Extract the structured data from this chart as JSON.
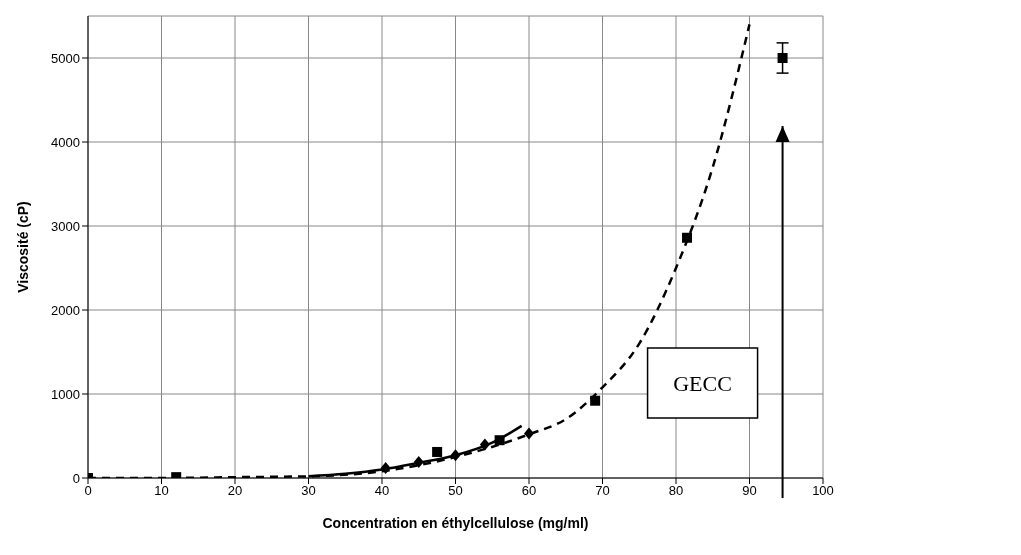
{
  "chart_data": {
    "type": "scatter",
    "xlabel": "Concentration en éthylcellulose  (mg/ml)",
    "ylabel": "Viscosité (cP)",
    "xlim": [
      0,
      100
    ],
    "xticks": [
      0,
      10,
      20,
      30,
      40,
      50,
      60,
      70,
      80,
      90,
      100
    ],
    "ylim": [
      0,
      5500
    ],
    "yticks": [
      0,
      1000,
      2000,
      3000,
      4000,
      5000
    ],
    "grid": true,
    "ref_lines": [
      {
        "axis": "x",
        "value": 94.5,
        "label": "GECC"
      }
    ],
    "series": [
      {
        "marker": "diamond",
        "color": "#000000",
        "x": [
          40.5,
          45,
          50,
          54,
          60
        ],
        "values": [
          120,
          190,
          270,
          400,
          530
        ]
      },
      {
        "marker": "square",
        "color": "#000000",
        "x": [
          0,
          12,
          47.5,
          56,
          69,
          81.5,
          94.5
        ],
        "values": [
          0,
          10,
          310,
          450,
          920,
          2860,
          5000
        ],
        "errors": [
          null,
          null,
          null,
          null,
          null,
          null,
          180
        ]
      },
      {
        "type": "line",
        "marker": "none",
        "line_style": "solid",
        "color": "#000000",
        "x": [
          30,
          35,
          40,
          45,
          50,
          55,
          59
        ],
        "values": [
          20,
          50,
          100,
          180,
          270,
          420,
          620
        ]
      },
      {
        "type": "line",
        "marker": "none",
        "line_style": "dashed",
        "color": "#000000",
        "x": [
          0,
          10,
          20,
          30,
          40,
          50,
          60,
          65,
          70,
          75,
          80,
          85,
          90
        ],
        "values": [
          0,
          0,
          10,
          20,
          80,
          250,
          520,
          700,
          1080,
          1600,
          2500,
          3700,
          5400
        ]
      }
    ]
  }
}
